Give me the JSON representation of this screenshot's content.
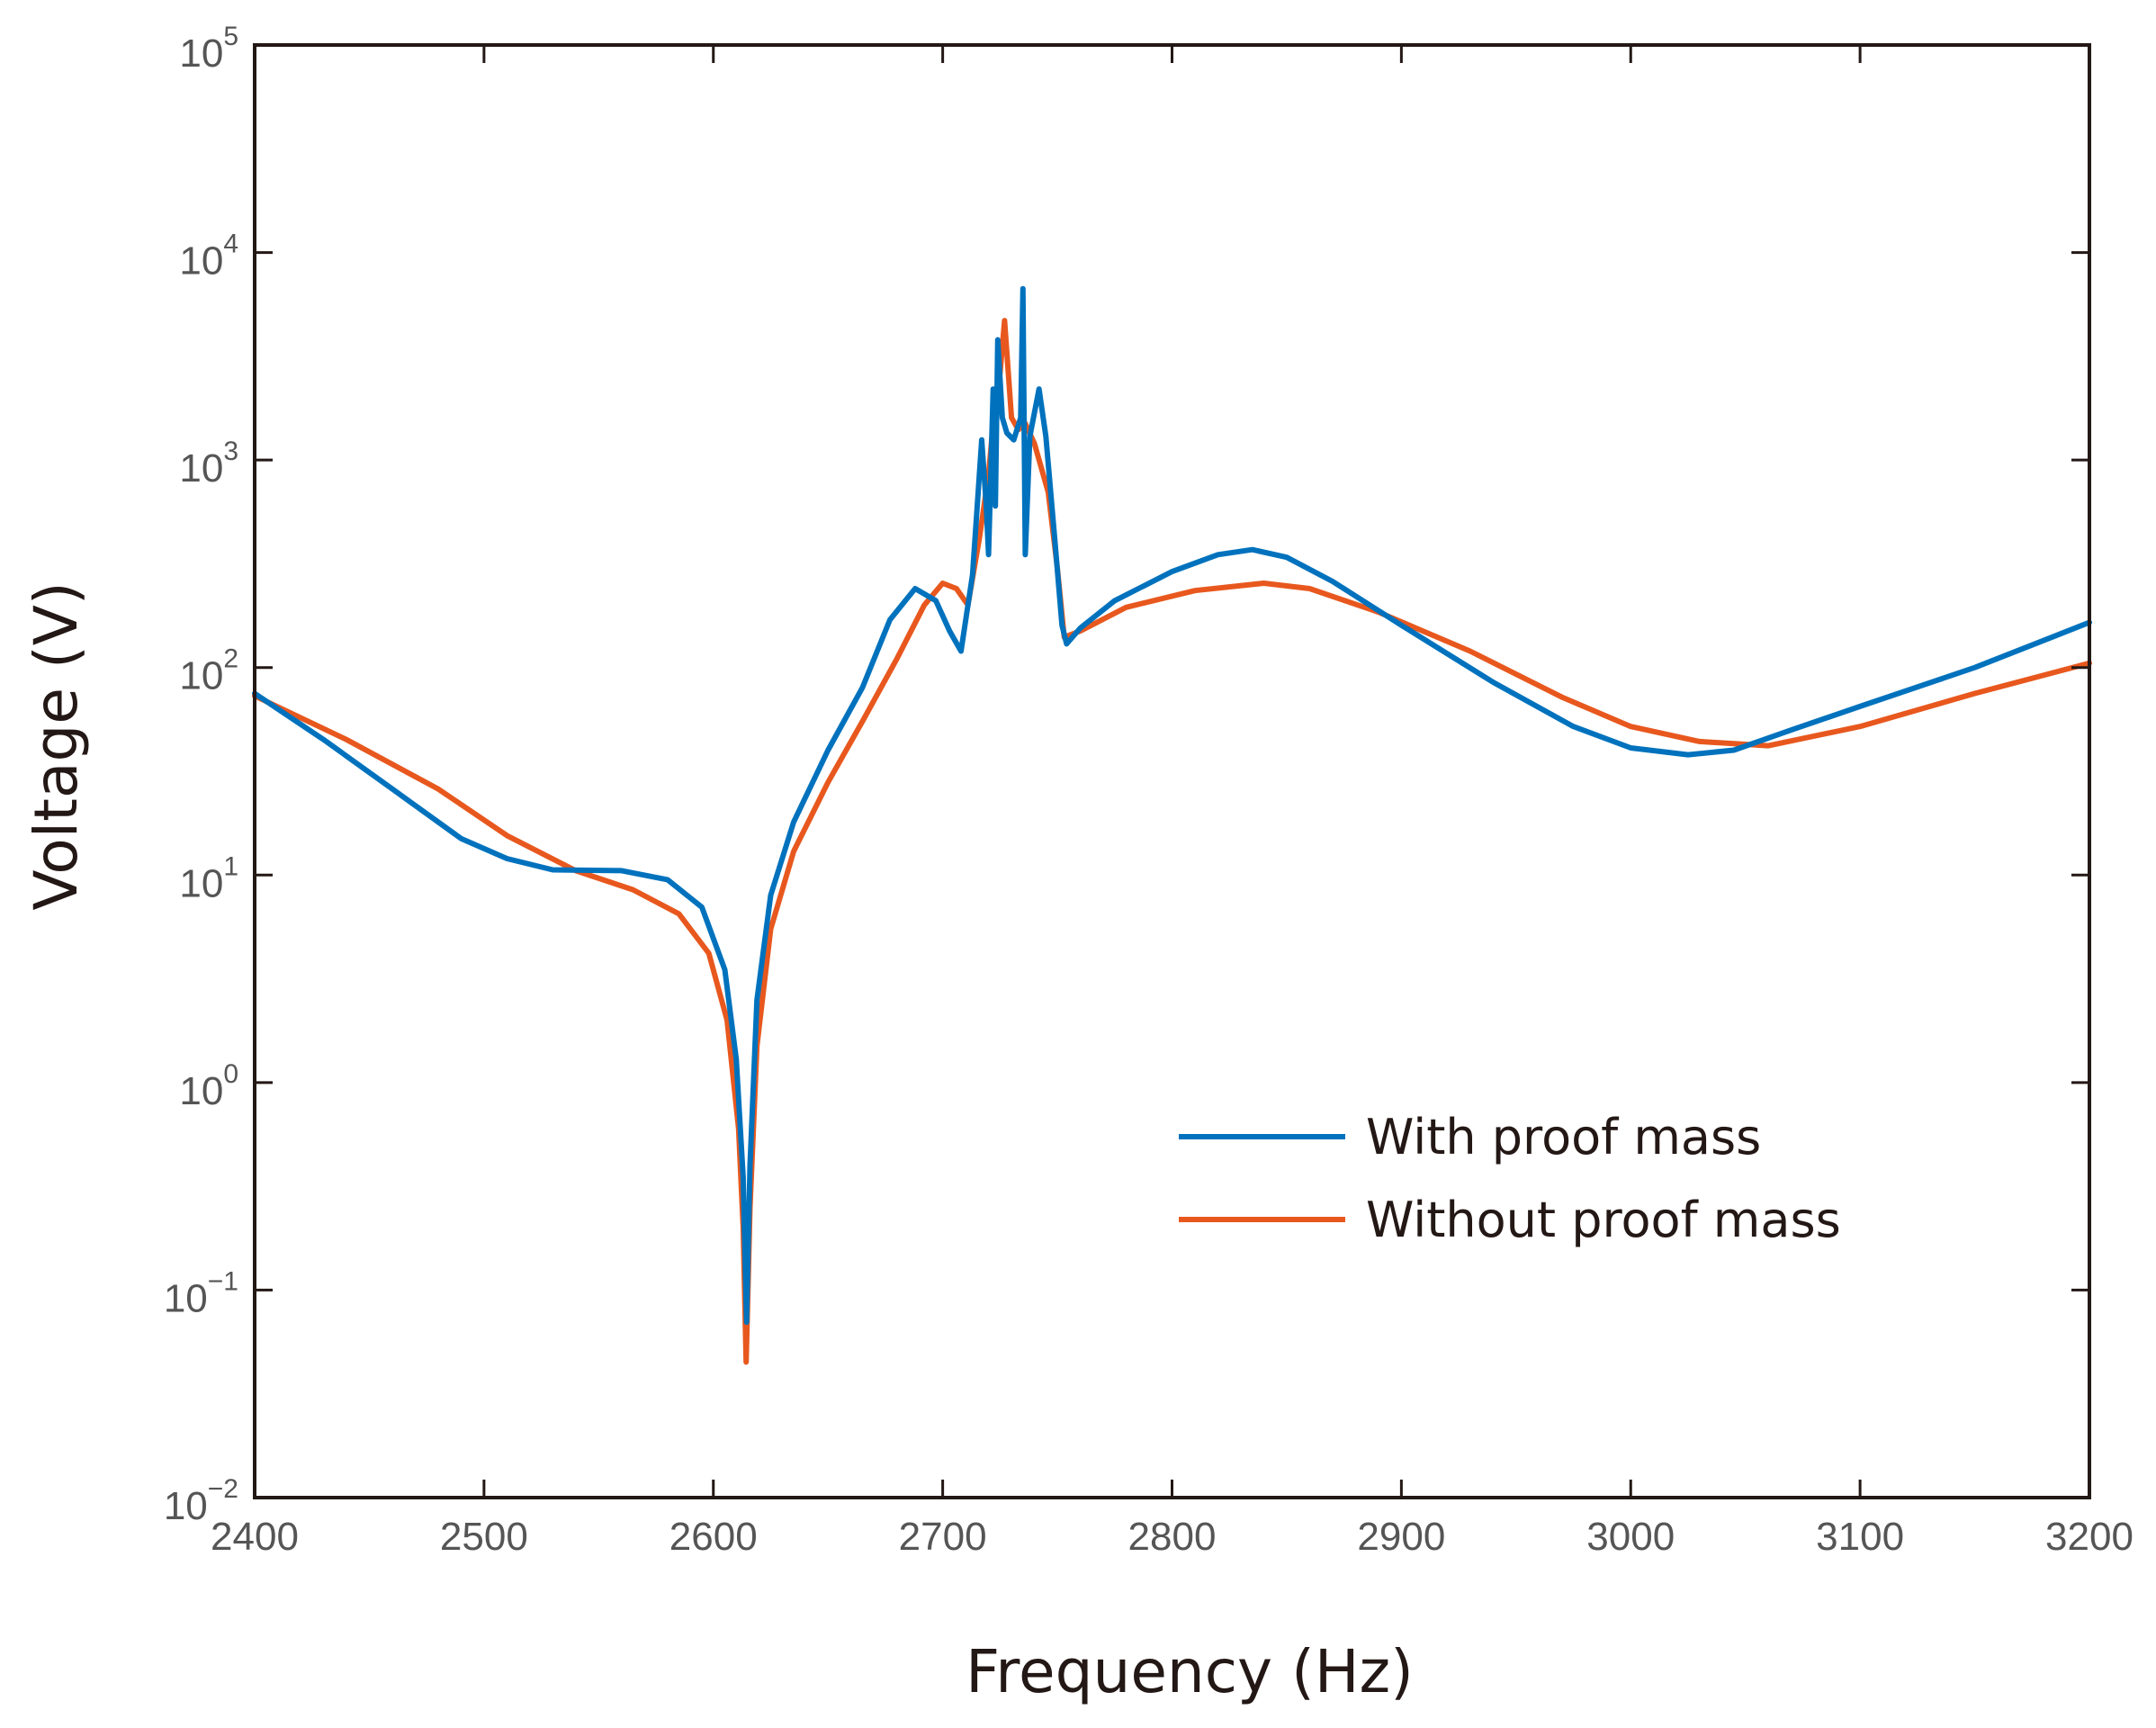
{
  "chart_data": {
    "type": "line",
    "title": "",
    "xlabel": "Frequency (Hz)",
    "ylabel": "Voltage (V)",
    "xlim": [
      2400,
      3200
    ],
    "ylim": [
      0.01,
      100000
    ],
    "yscale": "log",
    "grid": false,
    "legend_position": "lower-right",
    "x_ticks": [
      2400,
      2500,
      2600,
      2700,
      2800,
      2900,
      3000,
      3100,
      3200
    ],
    "y_ticks": [
      {
        "base": "10",
        "exp": "−2",
        "value": 0.01
      },
      {
        "base": "10",
        "exp": "−1",
        "value": 0.1
      },
      {
        "base": "10",
        "exp": "0",
        "value": 1
      },
      {
        "base": "10",
        "exp": "1",
        "value": 10
      },
      {
        "base": "10",
        "exp": "2",
        "value": 100
      },
      {
        "base": "10",
        "exp": "3",
        "value": 1000
      },
      {
        "base": "10",
        "exp": "4",
        "value": 10000
      },
      {
        "base": "10",
        "exp": "5",
        "value": 100000
      }
    ],
    "series": [
      {
        "name": "With proof mass",
        "color": "#0072BD",
        "points": [
          [
            2400,
            75
          ],
          [
            2430,
            45
          ],
          [
            2460,
            26
          ],
          [
            2490,
            15
          ],
          [
            2510,
            12
          ],
          [
            2530,
            10.6
          ],
          [
            2560,
            10.5
          ],
          [
            2580,
            9.5
          ],
          [
            2595,
            7
          ],
          [
            2605,
            3.5
          ],
          [
            2610,
            1.3
          ],
          [
            2613,
            0.35
          ],
          [
            2614.5,
            0.07
          ],
          [
            2616,
            0.4
          ],
          [
            2619,
            2.5
          ],
          [
            2625,
            8
          ],
          [
            2635,
            18
          ],
          [
            2650,
            40
          ],
          [
            2665,
            80
          ],
          [
            2677,
            170
          ],
          [
            2688,
            240
          ],
          [
            2697,
            210
          ],
          [
            2703,
            150
          ],
          [
            2708,
            120
          ],
          [
            2713,
            280
          ],
          [
            2717,
            1250
          ],
          [
            2719,
            600
          ],
          [
            2720,
            350
          ],
          [
            2722,
            2200
          ],
          [
            2723,
            600
          ],
          [
            2724,
            3800
          ],
          [
            2726,
            1600
          ],
          [
            2728,
            1350
          ],
          [
            2731,
            1250
          ],
          [
            2734,
            1600
          ],
          [
            2735,
            6700
          ],
          [
            2736,
            350
          ],
          [
            2738,
            1300
          ],
          [
            2742,
            2200
          ],
          [
            2745,
            1300
          ],
          [
            2749,
            400
          ],
          [
            2752,
            160
          ],
          [
            2754,
            130
          ],
          [
            2760,
            155
          ],
          [
            2775,
            210
          ],
          [
            2800,
            290
          ],
          [
            2820,
            350
          ],
          [
            2835,
            370
          ],
          [
            2850,
            340
          ],
          [
            2870,
            260
          ],
          [
            2900,
            160
          ],
          [
            2940,
            85
          ],
          [
            2975,
            52
          ],
          [
            3000,
            41
          ],
          [
            3025,
            38
          ],
          [
            3045,
            40
          ],
          [
            3070,
            50
          ],
          [
            3100,
            65
          ],
          [
            3150,
            100
          ],
          [
            3200,
            165
          ]
        ]
      },
      {
        "name": "Without proof mass",
        "color": "#E8581E",
        "points": [
          [
            2400,
            73
          ],
          [
            2440,
            45
          ],
          [
            2480,
            26
          ],
          [
            2510,
            15.5
          ],
          [
            2540,
            10.5
          ],
          [
            2565,
            8.5
          ],
          [
            2585,
            6.5
          ],
          [
            2598,
            4.2
          ],
          [
            2606,
            2
          ],
          [
            2611,
            0.6
          ],
          [
            2613,
            0.2
          ],
          [
            2614.3,
            0.045
          ],
          [
            2616,
            0.25
          ],
          [
            2619,
            1.5
          ],
          [
            2625,
            5.5
          ],
          [
            2635,
            13
          ],
          [
            2650,
            28
          ],
          [
            2665,
            55
          ],
          [
            2680,
            110
          ],
          [
            2692,
            200
          ],
          [
            2700,
            255
          ],
          [
            2706,
            240
          ],
          [
            2711,
            200
          ],
          [
            2716,
            420
          ],
          [
            2720,
            850
          ],
          [
            2722,
            1500
          ],
          [
            2725,
            2600
          ],
          [
            2727,
            4700
          ],
          [
            2730,
            1600
          ],
          [
            2733,
            1400
          ],
          [
            2736,
            1500
          ],
          [
            2740,
            1200
          ],
          [
            2746,
            700
          ],
          [
            2750,
            300
          ],
          [
            2753,
            140
          ],
          [
            2760,
            150
          ],
          [
            2780,
            195
          ],
          [
            2810,
            235
          ],
          [
            2840,
            255
          ],
          [
            2860,
            240
          ],
          [
            2890,
            185
          ],
          [
            2930,
            120
          ],
          [
            2970,
            72
          ],
          [
            3000,
            52
          ],
          [
            3030,
            44
          ],
          [
            3060,
            42
          ],
          [
            3100,
            52
          ],
          [
            3150,
            75
          ],
          [
            3200,
            105
          ]
        ]
      }
    ]
  }
}
